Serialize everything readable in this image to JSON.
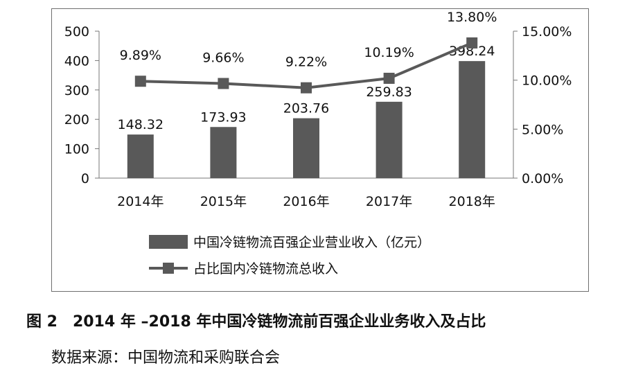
{
  "chart_data": {
    "type": "bar",
    "categories": [
      "2014年",
      "2015年",
      "2016年",
      "2017年",
      "2018年"
    ],
    "series": [
      {
        "name": "中国冷链物流百强企业营业收入（亿元）",
        "kind": "bar",
        "axis": "left",
        "values": [
          148.32,
          173.93,
          203.76,
          259.83,
          398.24
        ],
        "labels": [
          "148.32",
          "173.93",
          "203.76",
          "259.83",
          "398.24"
        ],
        "color": "#595959"
      },
      {
        "name": "占比国内冷链物流总收入",
        "kind": "line",
        "axis": "right",
        "values": [
          9.89,
          9.66,
          9.22,
          10.19,
          13.8
        ],
        "labels": [
          "9.89%",
          "9.66%",
          "9.22%",
          "10.19%",
          "13.80%"
        ],
        "color": "#595959"
      }
    ],
    "left_axis": {
      "ylim": [
        0,
        500
      ],
      "ticks": [
        "0",
        "100",
        "200",
        "300",
        "400",
        "500"
      ]
    },
    "right_axis": {
      "ylim": [
        0,
        15
      ],
      "ticks": [
        "0.00%",
        "5.00%",
        "10.00%",
        "15.00%"
      ]
    },
    "legend_placement": "bottom",
    "grid": false
  },
  "caption": "图 2　2014 年 –2018 年中国冷链物流前百强企业业务收入及占比",
  "source": "数据来源：中国物流和采购联合会"
}
